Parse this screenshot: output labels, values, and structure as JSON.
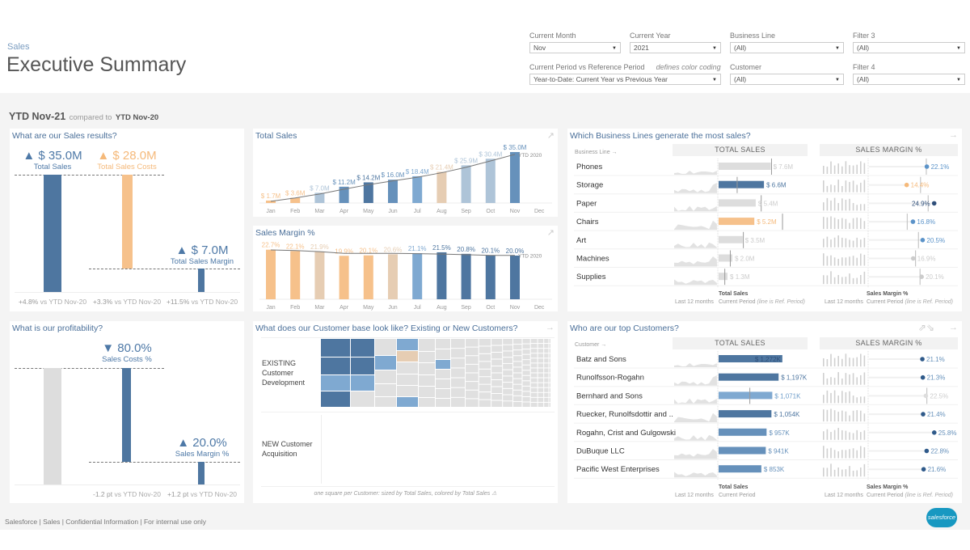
{
  "header": {
    "breadcrumb": "Sales",
    "title": "Executive Summary"
  },
  "filters": {
    "current_month": {
      "label": "Current Month",
      "value": "Nov"
    },
    "current_year": {
      "label": "Current Year",
      "value": "2021"
    },
    "business_line": {
      "label": "Business Line",
      "value": "(All)"
    },
    "filter3": {
      "label": "Filter 3",
      "value": "(All)"
    },
    "period": {
      "label": "Current Period vs Reference Period",
      "note": "defines color coding",
      "value": "Year-to-Date: Current Year vs Previous Year"
    },
    "customer": {
      "label": "Customer",
      "value": "(All)"
    },
    "filter4": {
      "label": "Filter 4",
      "value": "(All)"
    }
  },
  "period_title": {
    "current": "YTD Nov-21",
    "compared": "compared to",
    "reference": "YTD Nov-20"
  },
  "colors": {
    "dark_blue": "#4e76a0",
    "mid_blue": "#6691bb",
    "light_blue": "#7fa9d1",
    "pale_blue": "#aec4d8",
    "orange": "#f6c18b",
    "beige": "#e6cdb3",
    "grey": "#dddddd",
    "title": "#4a6f99"
  },
  "sales_results": {
    "title": "What are our Sales results?",
    "kpis": [
      {
        "arrow": "▲",
        "value": "$ 35.0M",
        "label": "Total Sales",
        "change": "+4.8%",
        "vs": "vs YTD Nov-20"
      },
      {
        "arrow": "▲",
        "value": "$ 28.0M",
        "label": "Total Sales Costs",
        "change": "+3.3%",
        "vs": "vs YTD Nov-20"
      },
      {
        "arrow": "▲",
        "value": "$ 7.0M",
        "label": "Total Sales Margin",
        "change": "+11.5%",
        "vs": "vs YTD Nov-20"
      }
    ],
    "values_musd": [
      35.0,
      28.0,
      7.0
    ]
  },
  "profitability": {
    "title": "What is our profitability?",
    "kpis": [
      {
        "arrow": "▼",
        "value": "80.0%",
        "label": "Sales Costs %",
        "change": "-1.2 pt",
        "vs": "vs YTD Nov-20"
      },
      {
        "arrow": "▲",
        "value": "20.0%",
        "label": "Sales Margin %",
        "change": "+1.2 pt",
        "vs": "vs YTD Nov-20"
      }
    ],
    "values_pct": [
      100,
      80.0,
      20.0
    ]
  },
  "chart_data": [
    {
      "type": "bar",
      "title": "Total Sales",
      "categories": [
        "Jan",
        "Feb",
        "Mar",
        "Apr",
        "May",
        "Jun",
        "Jul",
        "Aug",
        "Sep",
        "Oct",
        "Nov",
        "Dec"
      ],
      "values": [
        1.7,
        3.6,
        7.0,
        11.2,
        14.2,
        16.0,
        18.4,
        21.4,
        25.9,
        30.4,
        35.0,
        null
      ],
      "labels": [
        "$ 1.7M",
        "$ 3.6M",
        "$ 7.0M",
        "$ 11.2M",
        "$ 14.2M",
        "$ 16.0M",
        "$ 18.4M",
        "$ 21.4M",
        "$ 25.9M",
        "$ 30.4M",
        "$ 35.0M",
        ""
      ],
      "colors": [
        "#f6c18b",
        "#f6c18b",
        "#aec4d8",
        "#6691bb",
        "#4e76a0",
        "#6691bb",
        "#7fa9d1",
        "#e6cdb3",
        "#aec4d8",
        "#aec4d8",
        "#6691bb",
        null
      ],
      "reference": {
        "name": "YTD 2020",
        "values": [
          1.2,
          3.5,
          6.2,
          9.5,
          12.6,
          15.2,
          17.7,
          20.8,
          24.5,
          28.9,
          33.4
        ]
      },
      "ylim": [
        0,
        40
      ]
    },
    {
      "type": "bar",
      "title": "Sales Margin %",
      "categories": [
        "Jan",
        "Feb",
        "Mar",
        "Apr",
        "May",
        "Jun",
        "Jul",
        "Aug",
        "Sep",
        "Oct",
        "Nov",
        "Dec"
      ],
      "values": [
        22.7,
        22.1,
        21.9,
        19.9,
        20.1,
        20.6,
        21.1,
        21.5,
        20.8,
        20.1,
        20.0,
        null
      ],
      "labels": [
        "22.7%",
        "22.1%",
        "21.9%",
        "19.9%",
        "20.1%",
        "20.6%",
        "21.1%",
        "21.5%",
        "20.8%",
        "20.1%",
        "20.0%",
        ""
      ],
      "colors": [
        "#f6c18b",
        "#f6c18b",
        "#e6cdb3",
        "#f6c18b",
        "#f6c18b",
        "#e6cdb3",
        "#7fa9d1",
        "#4e76a0",
        "#4e76a0",
        "#4e76a0",
        "#4e76a0",
        null
      ],
      "reference": {
        "name": "YTD 2020",
        "values": [
          22.6,
          22.3,
          21.8,
          21.0,
          21.0,
          21.0,
          20.9,
          20.7,
          20.4,
          20.1,
          20.1
        ]
      },
      "ylim": [
        0,
        25
      ]
    }
  ],
  "business_lines": {
    "title": "Which Business Lines generate the most sales?",
    "col_label": "Business Line →",
    "sales_header": "TOTAL SALES",
    "margin_header": "SALES MARGIN %",
    "rows": [
      {
        "name": "Phones",
        "sales": 7.6,
        "sales_label": "$ 7.6M",
        "sales_ref": 7.7,
        "bar_color": "#dddddd",
        "label_color": "#cccccc",
        "margin": 22.1,
        "margin_label": "22.1%",
        "margin_ref": 21.9,
        "dot_color": "#5b93c9"
      },
      {
        "name": "Storage",
        "sales": 6.6,
        "sales_label": "$ 6.6M",
        "sales_ref": 2.7,
        "bar_color": "#4e76a0",
        "label_color": "#4e76a0",
        "margin": 14.4,
        "margin_label": "14.4%",
        "margin_ref": 19.7,
        "dot_color": "#f5b97a"
      },
      {
        "name": "Paper",
        "sales": 5.4,
        "sales_label": "$ 5.4M",
        "sales_ref": 6.2,
        "bar_color": "#dddddd",
        "label_color": "#cccccc",
        "margin": 24.9,
        "margin_label": "24.9%",
        "margin_ref": 22.6,
        "dot_color": "#2f4f7a",
        "label_left": true
      },
      {
        "name": "Chairs",
        "sales": 5.2,
        "sales_label": "$ 5.2M",
        "sales_ref": 9.3,
        "bar_color": "#f6c18b",
        "label_color": "#f5b97a",
        "margin": 16.8,
        "margin_label": "16.8%",
        "margin_ref": 14.6,
        "dot_color": "#5b93c9"
      },
      {
        "name": "Art",
        "sales": 3.5,
        "sales_label": "$ 3.5M",
        "sales_ref": 3.6,
        "bar_color": "#dddddd",
        "label_color": "#cccccc",
        "margin": 20.5,
        "margin_label": "20.5%",
        "margin_ref": 18.9,
        "dot_color": "#5b93c9"
      },
      {
        "name": "Machines",
        "sales": 2.0,
        "sales_label": "$ 2.0M",
        "sales_ref": 1.7,
        "bar_color": "#dddddd",
        "label_color": "#cccccc",
        "margin": 16.9,
        "margin_label": "16.9%",
        "margin_ref": 17.8,
        "dot_color": "#cccccc"
      },
      {
        "name": "Supplies",
        "sales": 1.3,
        "sales_label": "$ 1.3M",
        "sales_ref": 0.9,
        "bar_color": "#dddddd",
        "label_color": "#cccccc",
        "margin": 20.1,
        "margin_label": "20.1%",
        "margin_ref": 19.5,
        "dot_color": "#cccccc"
      }
    ],
    "footer": {
      "sales_title": "Total Sales",
      "margin_title": "Sales Margin %",
      "last12": "Last 12 months",
      "current": "Current Period",
      "ref_note": "(line is Ref. Period)"
    }
  },
  "customer_base": {
    "title": "What does our Customer base look like? Existing or New Customers?",
    "existing_label": "EXISTING Customer Development",
    "new_label": "NEW Customer Acquisition",
    "footnote": "one square per Customer: sized by Total Sales, colored by Total Sales ⚠"
  },
  "customers": {
    "title": "Who are our top Customers?",
    "col_label": "Customer →",
    "sales_header": "TOTAL SALES",
    "margin_header": "SALES MARGIN %",
    "rows": [
      {
        "name": "Batz and Sons",
        "sales": 1272,
        "sales_label": "$ 1,272K",
        "bar_color": "#4e76a0",
        "label_color": "#2f4f7a",
        "inside": true,
        "margin": 21.1,
        "margin_label": "21.1%",
        "dot_color": "#2f5a8a"
      },
      {
        "name": "Runolfsson-Rogahn",
        "sales": 1197,
        "sales_label": "$ 1,197K",
        "bar_color": "#4e76a0",
        "label_color": "#4e76a0",
        "margin": 21.3,
        "margin_label": "21.3%",
        "dot_color": "#2f5a8a"
      },
      {
        "name": "Bernhard and Sons",
        "sales": 1071,
        "sales_label": "$ 1,071K",
        "sales_ref": 623,
        "bar_color": "#7fa9d1",
        "label_color": "#6c9cc9",
        "margin": 22.5,
        "margin_label": "22.5%",
        "margin_ref": 22.9,
        "dot_color": "#dddddd"
      },
      {
        "name": "Ruecker, Runolfsdottir and ..",
        "sales": 1054,
        "sales_label": "$ 1,054K",
        "bar_color": "#4e76a0",
        "label_color": "#4e76a0",
        "margin": 21.4,
        "margin_label": "21.4%",
        "dot_color": "#2f5a8a"
      },
      {
        "name": "Rogahn, Crist and Gulgowski",
        "sales": 957,
        "sales_label": "$ 957K",
        "bar_color": "#6691bb",
        "label_color": "#6691bb",
        "margin": 25.8,
        "margin_label": "25.8%",
        "dot_color": "#2f5a8a"
      },
      {
        "name": "DuBuque LLC",
        "sales": 941,
        "sales_label": "$ 941K",
        "bar_color": "#6691bb",
        "label_color": "#6691bb",
        "margin": 22.8,
        "margin_label": "22.8%",
        "dot_color": "#2f5a8a"
      },
      {
        "name": "Pacific West Enterprises",
        "sales": 853,
        "sales_label": "$ 853K",
        "bar_color": "#6691bb",
        "label_color": "#6691bb",
        "margin": 21.6,
        "margin_label": "21.6%",
        "dot_color": "#2f5a8a"
      }
    ],
    "footer": {
      "sales_title": "Total Sales",
      "margin_title": "Sales Margin %",
      "last12": "Last 12 months",
      "current": "Current Period",
      "ref_note": "(line is Ref. Period)"
    }
  },
  "footer": {
    "text": "Salesforce | Sales | Confidential Information | For internal use only",
    "logo": "salesforce"
  },
  "icons": [
    "trend-icon",
    "arrow-right-icon",
    "sort-icon",
    "dropdown-icon",
    "salesforce-logo"
  ]
}
